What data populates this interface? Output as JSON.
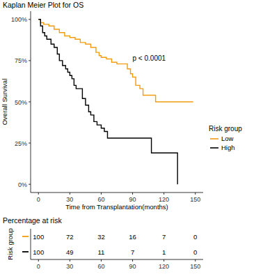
{
  "chart_data": {
    "type": "line",
    "line_style": "step",
    "title": "Kaplan Meier Plot for OS",
    "x_label": "Time from Transplantation(months)",
    "y_label": "Overall Survival",
    "annotation": "p < 0.0001",
    "legend": "right",
    "legend_title": "Risk group",
    "xlim": [
      -7.5,
      157.5
    ],
    "xticks": [
      0,
      30,
      60,
      90,
      120,
      150
    ],
    "ylim": [
      -5,
      105
    ],
    "yticks": [
      {
        "value": 0,
        "label": "0%"
      },
      {
        "value": 25,
        "label": "25%"
      },
      {
        "value": 50,
        "label": "50%"
      },
      {
        "value": 75,
        "label": "75%"
      },
      {
        "value": 100,
        "label": "100%"
      }
    ],
    "grid": false,
    "series": [
      {
        "name": "Low",
        "color": "#f39c12",
        "x": [
          0,
          2,
          5,
          10,
          15,
          20,
          25,
          30,
          35,
          40,
          45,
          50,
          55,
          58,
          60,
          65,
          70,
          75,
          85,
          88,
          90,
          93,
          97,
          100,
          112,
          148
        ],
        "values": [
          100,
          98,
          97,
          96,
          94,
          92,
          90,
          89,
          88,
          86,
          85,
          83,
          80,
          78,
          77,
          76,
          74,
          73,
          70,
          67,
          65,
          60,
          58,
          54,
          50,
          50
        ]
      },
      {
        "name": "High",
        "color": "#000000",
        "x": [
          0,
          2,
          4,
          6,
          8,
          12,
          15,
          18,
          20,
          23,
          26,
          28,
          30,
          32,
          34,
          36,
          42,
          45,
          48,
          50,
          53,
          56,
          60,
          63,
          66,
          108,
          133
        ],
        "values": [
          100,
          96,
          92,
          90,
          88,
          85,
          83,
          79,
          75,
          72,
          70,
          68,
          66,
          64,
          60,
          58,
          52,
          48,
          44,
          42,
          38,
          36,
          34,
          32,
          28,
          19,
          0
        ]
      }
    ],
    "risk_table": {
      "title": "Percentage at risk",
      "label": "Risk group",
      "x": [
        0,
        30,
        60,
        90,
        120,
        150
      ],
      "rows": [
        {
          "color": "#f39c12",
          "values": [
            100,
            72,
            32,
            16,
            7,
            0
          ]
        },
        {
          "color": "#000000",
          "values": [
            100,
            49,
            11,
            7,
            1,
            0
          ]
        }
      ]
    }
  }
}
